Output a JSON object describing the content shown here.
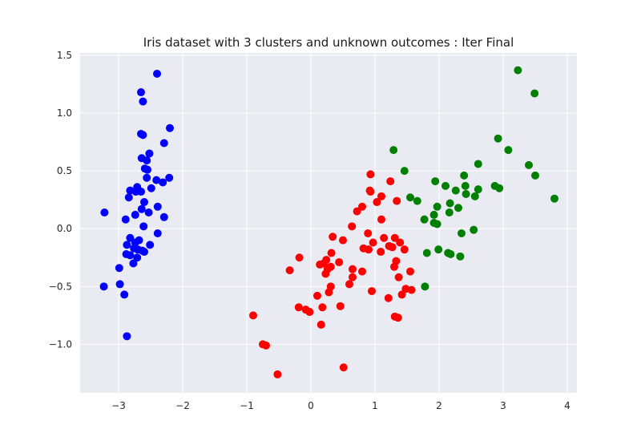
{
  "chart_data": {
    "type": "scatter",
    "title": "Iris dataset with 3 clusters and unknown outcomes : Iter Final",
    "xlabel": "",
    "ylabel": "",
    "xlim": [
      -3.6,
      4.15
    ],
    "ylim": [
      -1.42,
      1.52
    ],
    "xticks": [
      -3,
      -2,
      -1,
      0,
      1,
      2,
      3,
      4
    ],
    "yticks": [
      -1.0,
      -0.5,
      0.0,
      0.5,
      1.0,
      1.5
    ],
    "xtick_labels": [
      "−3",
      "−2",
      "−1",
      "0",
      "1",
      "2",
      "3",
      "4"
    ],
    "ytick_labels": [
      "−1.0",
      "−0.5",
      "0.0",
      "0.5",
      "1.0",
      "1.5"
    ],
    "grid": true,
    "background": "#eaeaf2",
    "series": [
      {
        "color": "#0000ff",
        "points": [
          [
            -2.4,
            1.34
          ],
          [
            -2.65,
            1.18
          ],
          [
            -2.62,
            1.1
          ],
          [
            -2.65,
            0.82
          ],
          [
            -2.62,
            0.81
          ],
          [
            -2.2,
            0.87
          ],
          [
            -2.29,
            0.74
          ],
          [
            -2.52,
            0.65
          ],
          [
            -2.64,
            0.61
          ],
          [
            -2.56,
            0.59
          ],
          [
            -2.59,
            0.52
          ],
          [
            -2.55,
            0.51
          ],
          [
            -2.56,
            0.44
          ],
          [
            -2.21,
            0.44
          ],
          [
            -2.41,
            0.42
          ],
          [
            -2.31,
            0.4
          ],
          [
            -2.71,
            0.36
          ],
          [
            -2.82,
            0.33
          ],
          [
            -2.73,
            0.32
          ],
          [
            -2.65,
            0.32
          ],
          [
            -2.49,
            0.35
          ],
          [
            -2.84,
            0.27
          ],
          [
            -2.6,
            0.23
          ],
          [
            -2.39,
            0.19
          ],
          [
            -2.64,
            0.17
          ],
          [
            -2.53,
            0.14
          ],
          [
            -2.74,
            0.12
          ],
          [
            -2.29,
            0.1
          ],
          [
            -2.89,
            0.08
          ],
          [
            -2.61,
            0.02
          ],
          [
            -2.39,
            -0.04
          ],
          [
            -2.82,
            -0.08
          ],
          [
            -2.68,
            -0.1
          ],
          [
            -2.74,
            -0.12
          ],
          [
            -2.87,
            -0.14
          ],
          [
            -2.51,
            -0.14
          ],
          [
            -2.76,
            -0.17
          ],
          [
            -2.7,
            -0.18
          ],
          [
            -2.63,
            -0.19
          ],
          [
            -2.6,
            -0.2
          ],
          [
            -2.88,
            -0.22
          ],
          [
            -2.82,
            -0.23
          ],
          [
            -2.71,
            -0.25
          ],
          [
            -2.77,
            -0.3
          ],
          [
            -2.99,
            -0.34
          ],
          [
            -3.22,
            0.14
          ],
          [
            -2.98,
            -0.48
          ],
          [
            -3.23,
            -0.5
          ],
          [
            -2.91,
            -0.57
          ],
          [
            -2.87,
            -0.93
          ]
        ]
      },
      {
        "color": "#ff0000",
        "points": [
          [
            0.93,
            0.47
          ],
          [
            1.24,
            0.41
          ],
          [
            0.92,
            0.33
          ],
          [
            0.93,
            0.32
          ],
          [
            1.1,
            0.28
          ],
          [
            1.34,
            0.24
          ],
          [
            1.03,
            0.23
          ],
          [
            0.8,
            0.19
          ],
          [
            0.72,
            0.15
          ],
          [
            1.1,
            0.08
          ],
          [
            0.64,
            0.02
          ],
          [
            0.89,
            -0.04
          ],
          [
            0.34,
            -0.07
          ],
          [
            1.14,
            -0.08
          ],
          [
            1.31,
            -0.08
          ],
          [
            0.5,
            -0.1
          ],
          [
            0.97,
            -0.12
          ],
          [
            1.39,
            -0.12
          ],
          [
            1.22,
            -0.15
          ],
          [
            1.27,
            -0.16
          ],
          [
            0.82,
            -0.17
          ],
          [
            0.9,
            -0.18
          ],
          [
            1.46,
            -0.18
          ],
          [
            1.09,
            -0.2
          ],
          [
            0.32,
            -0.21
          ],
          [
            -0.18,
            -0.25
          ],
          [
            0.24,
            -0.27
          ],
          [
            1.33,
            -0.28
          ],
          [
            0.44,
            -0.29
          ],
          [
            0.2,
            -0.3
          ],
          [
            0.14,
            -0.31
          ],
          [
            0.31,
            -0.33
          ],
          [
            1.3,
            -0.33
          ],
          [
            0.26,
            -0.35
          ],
          [
            0.65,
            -0.35
          ],
          [
            -0.33,
            -0.36
          ],
          [
            0.8,
            -0.37
          ],
          [
            1.55,
            -0.37
          ],
          [
            0.23,
            -0.39
          ],
          [
            0.65,
            -0.42
          ],
          [
            1.37,
            -0.42
          ],
          [
            0.6,
            -0.48
          ],
          [
            0.31,
            -0.5
          ],
          [
            1.48,
            -0.52
          ],
          [
            0.95,
            -0.54
          ],
          [
            1.57,
            -0.53
          ],
          [
            0.28,
            -0.55
          ],
          [
            1.42,
            -0.57
          ],
          [
            0.1,
            -0.58
          ],
          [
            1.21,
            -0.6
          ],
          [
            -0.19,
            -0.68
          ],
          [
            0.18,
            -0.68
          ],
          [
            0.46,
            -0.67
          ],
          [
            -0.08,
            -0.7
          ],
          [
            -0.02,
            -0.72
          ],
          [
            -0.9,
            -0.75
          ],
          [
            1.31,
            -0.76
          ],
          [
            1.36,
            -0.77
          ],
          [
            0.16,
            -0.83
          ],
          [
            -0.75,
            -1.0
          ],
          [
            -0.7,
            -1.01
          ],
          [
            0.51,
            -1.2
          ],
          [
            -0.52,
            -1.26
          ]
        ]
      },
      {
        "color": "#008000",
        "points": [
          [
            3.23,
            1.37
          ],
          [
            3.49,
            1.17
          ],
          [
            2.92,
            0.78
          ],
          [
            3.08,
            0.68
          ],
          [
            1.29,
            0.68
          ],
          [
            2.61,
            0.56
          ],
          [
            3.4,
            0.55
          ],
          [
            1.46,
            0.5
          ],
          [
            2.39,
            0.46
          ],
          [
            3.5,
            0.46
          ],
          [
            1.94,
            0.41
          ],
          [
            2.1,
            0.37
          ],
          [
            2.41,
            0.37
          ],
          [
            2.87,
            0.37
          ],
          [
            2.94,
            0.35
          ],
          [
            2.61,
            0.34
          ],
          [
            2.26,
            0.33
          ],
          [
            2.42,
            0.3
          ],
          [
            2.56,
            0.28
          ],
          [
            1.55,
            0.27
          ],
          [
            1.66,
            0.24
          ],
          [
            3.8,
            0.26
          ],
          [
            2.17,
            0.22
          ],
          [
            1.97,
            0.19
          ],
          [
            2.3,
            0.18
          ],
          [
            2.16,
            0.14
          ],
          [
            1.92,
            0.12
          ],
          [
            1.77,
            0.08
          ],
          [
            1.92,
            0.05
          ],
          [
            1.97,
            0.04
          ],
          [
            2.54,
            -0.01
          ],
          [
            2.35,
            -0.04
          ],
          [
            1.99,
            -0.18
          ],
          [
            1.81,
            -0.21
          ],
          [
            2.14,
            -0.21
          ],
          [
            2.18,
            -0.22
          ],
          [
            2.33,
            -0.24
          ],
          [
            1.78,
            -0.5
          ]
        ]
      }
    ]
  }
}
